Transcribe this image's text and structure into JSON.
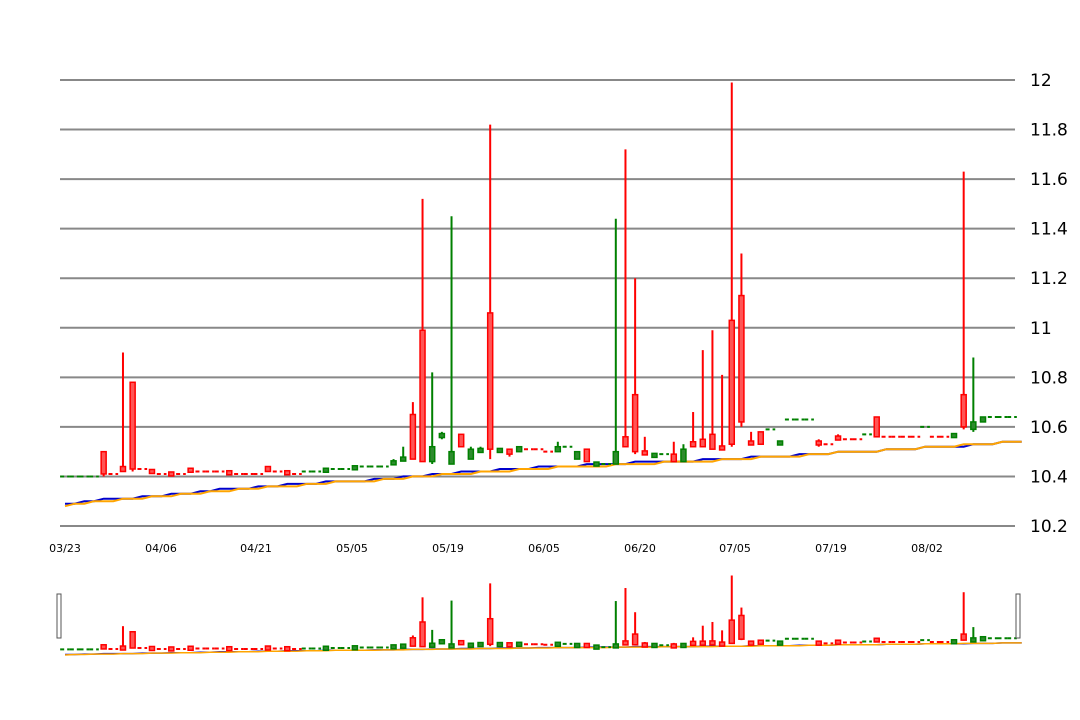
{
  "chart_data": {
    "type": "candlestick",
    "title": "",
    "y_range": [
      10.2,
      12
    ],
    "y_ticks": [
      "12",
      "11.8",
      "11.6",
      "11.4",
      "11.2",
      "11",
      "10.8",
      "10.6",
      "10.4",
      "10.2"
    ],
    "x_ticks": [
      "03/23",
      "04/06",
      "04/21",
      "05/05",
      "05/19",
      "06/05",
      "06/20",
      "07/05",
      "07/19",
      "08/02"
    ],
    "up_color": "#008000",
    "down_color": "#ff0000",
    "ma_short_color": "#0000cc",
    "ma_long_color": "#ffa500",
    "candles": [
      {
        "dir": "up",
        "o": 10.4,
        "c": 10.4,
        "h": 10.4,
        "l": 10.4
      },
      {
        "dir": "up",
        "o": 10.4,
        "c": 10.4,
        "h": 10.4,
        "l": 10.4
      },
      {
        "dir": "up",
        "o": 10.4,
        "c": 10.4,
        "h": 10.4,
        "l": 10.4
      },
      {
        "dir": "up",
        "o": 10.4,
        "c": 10.4,
        "h": 10.4,
        "l": 10.4
      },
      {
        "dir": "dn",
        "o": 10.5,
        "c": 10.41,
        "h": 10.5,
        "l": 10.4
      },
      {
        "dir": "dn",
        "o": 10.41,
        "c": 10.41,
        "h": 10.41,
        "l": 10.41
      },
      {
        "dir": "dn",
        "o": 10.44,
        "c": 10.42,
        "h": 10.9,
        "l": 10.42
      },
      {
        "dir": "dn",
        "o": 10.78,
        "c": 10.43,
        "h": 10.78,
        "l": 10.42
      },
      {
        "dir": "dn",
        "o": 10.43,
        "c": 10.43,
        "h": 10.43,
        "l": 10.43
      },
      {
        "dir": "dn",
        "o": 10.42,
        "c": 10.42,
        "h": 10.43,
        "l": 10.41
      },
      {
        "dir": "dn",
        "o": 10.41,
        "c": 10.41,
        "h": 10.41,
        "l": 10.41
      },
      {
        "dir": "dn",
        "o": 10.41,
        "c": 10.41,
        "h": 10.42,
        "l": 10.41
      },
      {
        "dir": "dn",
        "o": 10.41,
        "c": 10.41,
        "h": 10.41,
        "l": 10.41
      },
      {
        "dir": "dn",
        "o": 10.43,
        "c": 10.42,
        "h": 10.43,
        "l": 10.42
      },
      {
        "dir": "dn",
        "o": 10.42,
        "c": 10.42,
        "h": 10.42,
        "l": 10.42
      },
      {
        "dir": "dn",
        "o": 10.42,
        "c": 10.42,
        "h": 10.42,
        "l": 10.42
      },
      {
        "dir": "dn",
        "o": 10.42,
        "c": 10.42,
        "h": 10.42,
        "l": 10.42
      },
      {
        "dir": "dn",
        "o": 10.42,
        "c": 10.41,
        "h": 10.42,
        "l": 10.41
      },
      {
        "dir": "dn",
        "o": 10.41,
        "c": 10.41,
        "h": 10.41,
        "l": 10.41
      },
      {
        "dir": "dn",
        "o": 10.41,
        "c": 10.41,
        "h": 10.41,
        "l": 10.41
      },
      {
        "dir": "dn",
        "o": 10.41,
        "c": 10.41,
        "h": 10.41,
        "l": 10.41
      },
      {
        "dir": "dn",
        "o": 10.44,
        "c": 10.42,
        "h": 10.44,
        "l": 10.42
      },
      {
        "dir": "dn",
        "o": 10.42,
        "c": 10.42,
        "h": 10.42,
        "l": 10.42
      },
      {
        "dir": "dn",
        "o": 10.42,
        "c": 10.41,
        "h": 10.42,
        "l": 10.41
      },
      {
        "dir": "dn",
        "o": 10.41,
        "c": 10.41,
        "h": 10.41,
        "l": 10.41
      },
      {
        "dir": "up",
        "o": 10.42,
        "c": 10.42,
        "h": 10.42,
        "l": 10.42
      },
      {
        "dir": "up",
        "o": 10.42,
        "c": 10.42,
        "h": 10.42,
        "l": 10.42
      },
      {
        "dir": "up",
        "o": 10.42,
        "c": 10.43,
        "h": 10.43,
        "l": 10.42
      },
      {
        "dir": "up",
        "o": 10.43,
        "c": 10.43,
        "h": 10.43,
        "l": 10.43
      },
      {
        "dir": "up",
        "o": 10.43,
        "c": 10.43,
        "h": 10.43,
        "l": 10.43
      },
      {
        "dir": "up",
        "o": 10.43,
        "c": 10.44,
        "h": 10.44,
        "l": 10.43
      },
      {
        "dir": "up",
        "o": 10.44,
        "c": 10.44,
        "h": 10.44,
        "l": 10.44
      },
      {
        "dir": "up",
        "o": 10.44,
        "c": 10.44,
        "h": 10.44,
        "l": 10.44
      },
      {
        "dir": "up",
        "o": 10.44,
        "c": 10.44,
        "h": 10.44,
        "l": 10.44
      },
      {
        "dir": "up",
        "o": 10.45,
        "c": 10.46,
        "h": 10.47,
        "l": 10.45
      },
      {
        "dir": "up",
        "o": 10.47,
        "c": 10.47,
        "h": 10.52,
        "l": 10.47
      },
      {
        "dir": "dn",
        "o": 10.65,
        "c": 10.47,
        "h": 10.7,
        "l": 10.47
      },
      {
        "dir": "dn",
        "o": 10.99,
        "c": 10.46,
        "h": 11.52,
        "l": 10.46
      },
      {
        "dir": "up",
        "o": 10.46,
        "c": 10.52,
        "h": 10.82,
        "l": 10.45
      },
      {
        "dir": "up",
        "o": 10.56,
        "c": 10.57,
        "h": 10.58,
        "l": 10.55
      },
      {
        "dir": "up",
        "o": 10.45,
        "c": 10.5,
        "h": 11.45,
        "l": 10.45
      },
      {
        "dir": "dn",
        "o": 10.57,
        "c": 10.52,
        "h": 10.57,
        "l": 10.52
      },
      {
        "dir": "up",
        "o": 10.47,
        "c": 10.51,
        "h": 10.52,
        "l": 10.47
      },
      {
        "dir": "up",
        "o": 10.5,
        "c": 10.51,
        "h": 10.52,
        "l": 10.5
      },
      {
        "dir": "dn",
        "o": 11.06,
        "c": 10.51,
        "h": 11.82,
        "l": 10.47
      },
      {
        "dir": "up",
        "o": 10.5,
        "c": 10.51,
        "h": 10.51,
        "l": 10.5
      },
      {
        "dir": "dn",
        "o": 10.51,
        "c": 10.49,
        "h": 10.51,
        "l": 10.48
      },
      {
        "dir": "up",
        "o": 10.5,
        "c": 10.52,
        "h": 10.52,
        "l": 10.5
      },
      {
        "dir": "dn",
        "o": 10.51,
        "c": 10.51,
        "h": 10.51,
        "l": 10.51
      },
      {
        "dir": "dn",
        "o": 10.51,
        "c": 10.51,
        "h": 10.51,
        "l": 10.51
      },
      {
        "dir": "dn",
        "o": 10.5,
        "c": 10.5,
        "h": 10.5,
        "l": 10.5
      },
      {
        "dir": "up",
        "o": 10.5,
        "c": 10.52,
        "h": 10.54,
        "l": 10.5
      },
      {
        "dir": "up",
        "o": 10.52,
        "c": 10.52,
        "h": 10.52,
        "l": 10.52
      },
      {
        "dir": "up",
        "o": 10.47,
        "c": 10.5,
        "h": 10.5,
        "l": 10.47
      },
      {
        "dir": "dn",
        "o": 10.51,
        "c": 10.46,
        "h": 10.51,
        "l": 10.46
      },
      {
        "dir": "up",
        "o": 10.45,
        "c": 10.45,
        "h": 10.46,
        "l": 10.45
      },
      {
        "dir": "up",
        "o": 10.45,
        "c": 10.45,
        "h": 10.45,
        "l": 10.45
      },
      {
        "dir": "up",
        "o": 10.45,
        "c": 10.5,
        "h": 11.44,
        "l": 10.45
      },
      {
        "dir": "dn",
        "o": 10.56,
        "c": 10.52,
        "h": 11.72,
        "l": 10.52
      },
      {
        "dir": "dn",
        "o": 10.73,
        "c": 10.5,
        "h": 11.2,
        "l": 10.49
      },
      {
        "dir": "dn",
        "o": 10.5,
        "c": 10.49,
        "h": 10.56,
        "l": 10.49
      },
      {
        "dir": "up",
        "o": 10.48,
        "c": 10.49,
        "h": 10.49,
        "l": 10.48
      },
      {
        "dir": "up",
        "o": 10.49,
        "c": 10.49,
        "h": 10.49,
        "l": 10.49
      },
      {
        "dir": "dn",
        "o": 10.49,
        "c": 10.46,
        "h": 10.54,
        "l": 10.46
      },
      {
        "dir": "up",
        "o": 10.46,
        "c": 10.51,
        "h": 10.53,
        "l": 10.46
      },
      {
        "dir": "dn",
        "o": 10.54,
        "c": 10.52,
        "h": 10.66,
        "l": 10.52
      },
      {
        "dir": "dn",
        "o": 10.55,
        "c": 10.52,
        "h": 10.91,
        "l": 10.52
      },
      {
        "dir": "dn",
        "o": 10.57,
        "c": 10.51,
        "h": 10.99,
        "l": 10.51
      },
      {
        "dir": "dn",
        "o": 10.52,
        "c": 10.51,
        "h": 10.81,
        "l": 10.51
      },
      {
        "dir": "dn",
        "o": 11.03,
        "c": 10.53,
        "h": 11.99,
        "l": 10.52
      },
      {
        "dir": "dn",
        "o": 11.13,
        "c": 10.62,
        "h": 11.3,
        "l": 10.6
      },
      {
        "dir": "dn",
        "o": 10.54,
        "c": 10.53,
        "h": 10.58,
        "l": 10.53
      },
      {
        "dir": "dn",
        "o": 10.58,
        "c": 10.53,
        "h": 10.58,
        "l": 10.53
      },
      {
        "dir": "up",
        "o": 10.59,
        "c": 10.59,
        "h": 10.59,
        "l": 10.59
      },
      {
        "dir": "up",
        "o": 10.53,
        "c": 10.54,
        "h": 10.54,
        "l": 10.53
      },
      {
        "dir": "up",
        "o": 10.63,
        "c": 10.63,
        "h": 10.63,
        "l": 10.63
      },
      {
        "dir": "up",
        "o": 10.63,
        "c": 10.63,
        "h": 10.63,
        "l": 10.63
      },
      {
        "dir": "up",
        "o": 10.63,
        "c": 10.63,
        "h": 10.63,
        "l": 10.63
      },
      {
        "dir": "dn",
        "o": 10.54,
        "c": 10.53,
        "h": 10.55,
        "l": 10.52
      },
      {
        "dir": "dn",
        "o": 10.53,
        "c": 10.53,
        "h": 10.53,
        "l": 10.53
      },
      {
        "dir": "dn",
        "o": 10.56,
        "c": 10.55,
        "h": 10.57,
        "l": 10.55
      },
      {
        "dir": "dn",
        "o": 10.55,
        "c": 10.55,
        "h": 10.55,
        "l": 10.55
      },
      {
        "dir": "dn",
        "o": 10.55,
        "c": 10.55,
        "h": 10.55,
        "l": 10.55
      },
      {
        "dir": "up",
        "o": 10.57,
        "c": 10.57,
        "h": 10.57,
        "l": 10.57
      },
      {
        "dir": "dn",
        "o": 10.64,
        "c": 10.56,
        "h": 10.64,
        "l": 10.56
      },
      {
        "dir": "dn",
        "o": 10.56,
        "c": 10.56,
        "h": 10.56,
        "l": 10.56
      },
      {
        "dir": "dn",
        "o": 10.56,
        "c": 10.56,
        "h": 10.56,
        "l": 10.56
      },
      {
        "dir": "dn",
        "o": 10.56,
        "c": 10.56,
        "h": 10.56,
        "l": 10.56
      },
      {
        "dir": "dn",
        "o": 10.56,
        "c": 10.56,
        "h": 10.56,
        "l": 10.56
      },
      {
        "dir": "up",
        "o": 10.6,
        "c": 10.6,
        "h": 10.6,
        "l": 10.6
      },
      {
        "dir": "dn",
        "o": 10.56,
        "c": 10.56,
        "h": 10.56,
        "l": 10.56
      },
      {
        "dir": "dn",
        "o": 10.56,
        "c": 10.56,
        "h": 10.56,
        "l": 10.56
      },
      {
        "dir": "up",
        "o": 10.56,
        "c": 10.57,
        "h": 10.57,
        "l": 10.56
      },
      {
        "dir": "dn",
        "o": 10.73,
        "c": 10.6,
        "h": 11.63,
        "l": 10.59
      },
      {
        "dir": "up",
        "o": 10.59,
        "c": 10.62,
        "h": 10.88,
        "l": 10.58
      },
      {
        "dir": "up",
        "o": 10.62,
        "c": 10.64,
        "h": 10.64,
        "l": 10.62
      },
      {
        "dir": "up",
        "o": 10.64,
        "c": 10.64,
        "h": 10.64,
        "l": 10.64
      },
      {
        "dir": "up",
        "o": 10.64,
        "c": 10.64,
        "h": 10.64,
        "l": 10.64
      },
      {
        "dir": "up",
        "o": 10.64,
        "c": 10.64,
        "h": 10.64,
        "l": 10.64
      }
    ],
    "ma_short": [
      10.29,
      10.29,
      10.3,
      10.3,
      10.31,
      10.31,
      10.31,
      10.31,
      10.32,
      10.32,
      10.32,
      10.33,
      10.33,
      10.33,
      10.34,
      10.34,
      10.35,
      10.35,
      10.35,
      10.35,
      10.36,
      10.36,
      10.36,
      10.37,
      10.37,
      10.37,
      10.37,
      10.38,
      10.38,
      10.38,
      10.38,
      10.38,
      10.39,
      10.39,
      10.39,
      10.4,
      10.4,
      10.4,
      10.41,
      10.41,
      10.41,
      10.42,
      10.42,
      10.42,
      10.42,
      10.43,
      10.43,
      10.43,
      10.43,
      10.44,
      10.44,
      10.44,
      10.44,
      10.44,
      10.45,
      10.45,
      10.45,
      10.45,
      10.45,
      10.46,
      10.46,
      10.46,
      10.46,
      10.46,
      10.46,
      10.46,
      10.47,
      10.47,
      10.47,
      10.47,
      10.47,
      10.48,
      10.48,
      10.48,
      10.48,
      10.48,
      10.49,
      10.49,
      10.49,
      10.49,
      10.5,
      10.5,
      10.5,
      10.5,
      10.5,
      10.51,
      10.51,
      10.51,
      10.51,
      10.52,
      10.52,
      10.52,
      10.52,
      10.52,
      10.53,
      10.53,
      10.53,
      10.54,
      10.54,
      10.54
    ],
    "ma_long": [
      10.28,
      10.29,
      10.29,
      10.3,
      10.3,
      10.3,
      10.31,
      10.31,
      10.31,
      10.32,
      10.32,
      10.32,
      10.33,
      10.33,
      10.33,
      10.34,
      10.34,
      10.34,
      10.35,
      10.35,
      10.35,
      10.36,
      10.36,
      10.36,
      10.36,
      10.37,
      10.37,
      10.37,
      10.38,
      10.38,
      10.38,
      10.38,
      10.38,
      10.39,
      10.39,
      10.39,
      10.4,
      10.4,
      10.4,
      10.41,
      10.41,
      10.41,
      10.41,
      10.42,
      10.42,
      10.42,
      10.42,
      10.43,
      10.43,
      10.43,
      10.43,
      10.44,
      10.44,
      10.44,
      10.44,
      10.44,
      10.44,
      10.45,
      10.45,
      10.45,
      10.45,
      10.45,
      10.46,
      10.46,
      10.46,
      10.46,
      10.46,
      10.46,
      10.47,
      10.47,
      10.47,
      10.47,
      10.48,
      10.48,
      10.48,
      10.48,
      10.48,
      10.49,
      10.49,
      10.49,
      10.5,
      10.5,
      10.5,
      10.5,
      10.5,
      10.51,
      10.51,
      10.51,
      10.51,
      10.52,
      10.52,
      10.52,
      10.52,
      10.53,
      10.53,
      10.53,
      10.53,
      10.54,
      10.54,
      10.54
    ]
  }
}
